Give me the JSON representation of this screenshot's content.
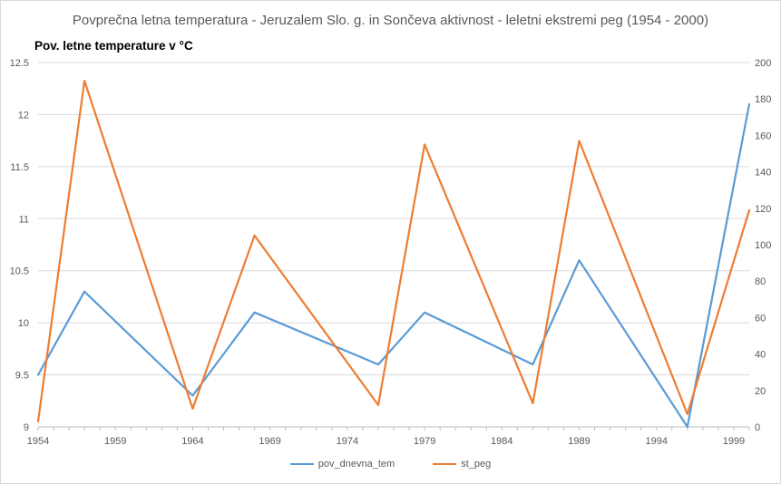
{
  "chart_data": {
    "type": "line",
    "title": "Povprečna letna temperatura  - Jeruzalem Slo. g. in Sončeva aktivnost - leletni  ekstremi peg (1954 - 2000)",
    "ylabel": "Pov. letne temperature v °C",
    "xlabel": "",
    "x_ticks": [
      1954,
      1959,
      1964,
      1969,
      1974,
      1979,
      1984,
      1989,
      1994,
      1999
    ],
    "xlim": [
      1954,
      2000
    ],
    "ylim": [
      9,
      12.5
    ],
    "y_ticks": [
      "9",
      "9.5",
      "10",
      "10.5",
      "11",
      "11.5",
      "12",
      "12.5"
    ],
    "y2lim": [
      0,
      200
    ],
    "y2_ticks": [
      "0",
      "20",
      "40",
      "60",
      "80",
      "100",
      "120",
      "140",
      "160",
      "180",
      "200"
    ],
    "grid": true,
    "legend_position": "bottom",
    "series": [
      {
        "name": "pov_dnevna_tem",
        "axis": "left",
        "color": "#5b9bd5",
        "x": [
          1954,
          1957,
          1964,
          1968,
          1976,
          1979,
          1986,
          1989,
          1996,
          2000
        ],
        "values": [
          9.5,
          10.3,
          9.3,
          10.1,
          9.6,
          10.1,
          9.6,
          10.6,
          9.0,
          12.1
        ]
      },
      {
        "name": "st_peg",
        "axis": "right",
        "color": "#ed7d31",
        "x": [
          1954,
          1957,
          1964,
          1968,
          1976,
          1979,
          1986,
          1989,
          1996,
          2000
        ],
        "values": [
          3,
          190,
          10,
          105,
          12,
          155,
          13,
          157,
          7,
          119
        ]
      }
    ]
  }
}
